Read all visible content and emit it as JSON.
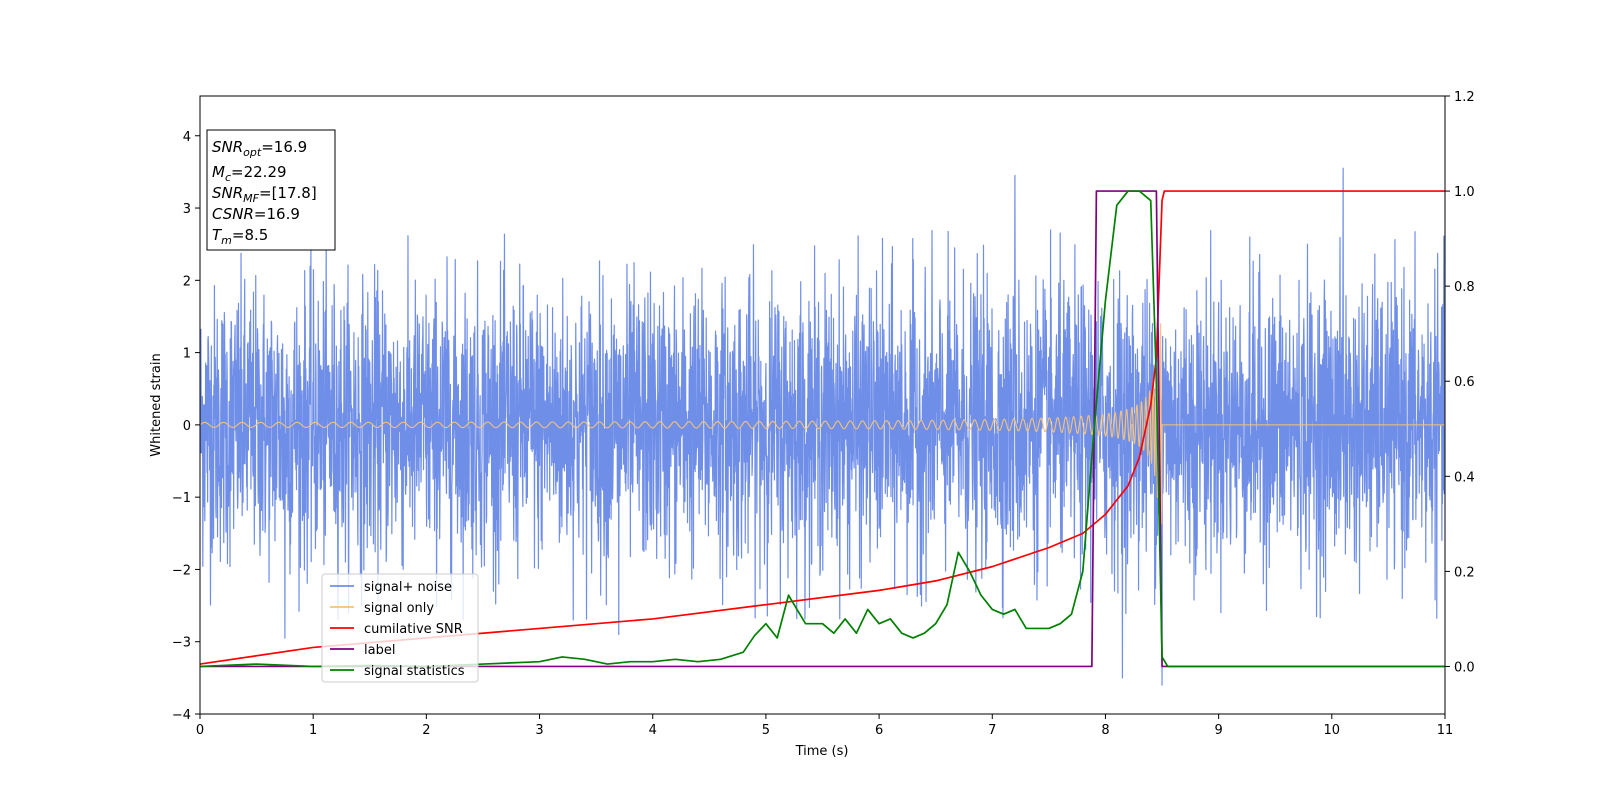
{
  "chart_data": {
    "type": "line",
    "xlabel": "Time (s)",
    "ylabel": "Whitened strain",
    "xlim": [
      0,
      11
    ],
    "ylim": [
      -4,
      4.55
    ],
    "y2lim": [
      -0.1,
      1.2
    ],
    "xticks": [
      "0",
      "1",
      "2",
      "3",
      "4",
      "5",
      "6",
      "7",
      "8",
      "9",
      "10",
      "11"
    ],
    "yticks": [
      "−4",
      "−3",
      "−2",
      "−1",
      "0",
      "1",
      "2",
      "3",
      "4"
    ],
    "y2ticks": [
      "0.0",
      "0.2",
      "0.4",
      "0.6",
      "0.8",
      "1.0",
      "1.2"
    ],
    "info_box": {
      "lines": [
        {
          "sym": "SNR",
          "sub": "opt",
          "value": "=16.9"
        },
        {
          "sym": "M",
          "sub": "c",
          "value": "=22.29"
        },
        {
          "sym": "SNR",
          "sub": "MF",
          "value": "=[17.8]"
        },
        {
          "sym": "CSNR",
          "sub": "",
          "value": "=16.9"
        },
        {
          "sym": "T",
          "sub": "m",
          "value": "=8.5"
        }
      ]
    },
    "legend": {
      "placement": "lower-left",
      "entries": [
        {
          "name": "signal+ noise",
          "color": "#6f8ee7"
        },
        {
          "name": "signal only",
          "color": "#f5c27a"
        },
        {
          "name": "cumilative SNR",
          "color": "#ff0000"
        },
        {
          "name": "label",
          "color": "#800080"
        },
        {
          "name": "signal statistics",
          "color": "#008000"
        }
      ]
    },
    "series": [
      {
        "name": "signal+ noise",
        "axis": "left",
        "color": "#6f8ee7",
        "generated": true,
        "duration": 11,
        "noise_std": 1.0,
        "typical_peak": 2.6,
        "spikes": [
          [
            3.7,
            3.35
          ],
          [
            7.2,
            3.45
          ],
          [
            8.5,
            3.55
          ],
          [
            10.1,
            3.55
          ],
          [
            8.15,
            -3.5
          ],
          [
            8.5,
            -3.6
          ],
          [
            3.7,
            -2.9
          ],
          [
            0.75,
            -2.95
          ]
        ]
      },
      {
        "name": "signal only",
        "axis": "left",
        "color": "#f5c27a",
        "chirp": {
          "t_merger": 8.5,
          "amp_start": 0.02,
          "amp_peak": 1.4,
          "f_start": 6,
          "f_peak": 60
        }
      },
      {
        "name": "cumilative SNR",
        "axis": "right",
        "color": "#ff0000",
        "x": [
          0,
          1,
          2,
          3,
          4,
          5,
          6,
          6.5,
          7,
          7.5,
          7.8,
          8.0,
          8.2,
          8.3,
          8.4,
          8.45,
          8.5,
          8.52,
          11
        ],
        "y": [
          0.005,
          0.04,
          0.06,
          0.08,
          0.1,
          0.13,
          0.16,
          0.18,
          0.21,
          0.25,
          0.28,
          0.32,
          0.38,
          0.44,
          0.55,
          0.65,
          0.98,
          1.0,
          1.0
        ]
      },
      {
        "name": "label",
        "axis": "right",
        "color": "#800080",
        "x": [
          0,
          7.88,
          7.92,
          8.45,
          8.5,
          11
        ],
        "y": [
          0,
          0,
          1,
          1,
          0,
          0
        ]
      },
      {
        "name": "signal statistics",
        "axis": "right",
        "color": "#008000",
        "x": [
          0,
          0.5,
          1,
          1.5,
          2,
          2.5,
          3,
          3.2,
          3.4,
          3.6,
          3.8,
          4,
          4.2,
          4.4,
          4.6,
          4.8,
          4.9,
          5.0,
          5.1,
          5.2,
          5.35,
          5.5,
          5.6,
          5.7,
          5.8,
          5.9,
          6.0,
          6.1,
          6.2,
          6.3,
          6.4,
          6.5,
          6.6,
          6.7,
          6.8,
          6.9,
          7.0,
          7.1,
          7.2,
          7.3,
          7.4,
          7.5,
          7.6,
          7.7,
          7.8,
          7.9,
          8.0,
          8.1,
          8.2,
          8.3,
          8.4,
          8.45,
          8.5,
          8.55,
          8.6,
          11
        ],
        "y": [
          0,
          0.005,
          0.0,
          0.002,
          0.0,
          0.005,
          0.01,
          0.02,
          0.015,
          0.005,
          0.01,
          0.01,
          0.015,
          0.01,
          0.015,
          0.03,
          0.065,
          0.09,
          0.06,
          0.15,
          0.09,
          0.09,
          0.07,
          0.1,
          0.07,
          0.12,
          0.09,
          0.1,
          0.07,
          0.06,
          0.07,
          0.09,
          0.13,
          0.24,
          0.2,
          0.15,
          0.12,
          0.11,
          0.12,
          0.08,
          0.08,
          0.08,
          0.09,
          0.11,
          0.2,
          0.5,
          0.77,
          0.97,
          1.0,
          1.0,
          0.98,
          0.6,
          0.02,
          0.0,
          0.0,
          0.0
        ]
      }
    ]
  }
}
